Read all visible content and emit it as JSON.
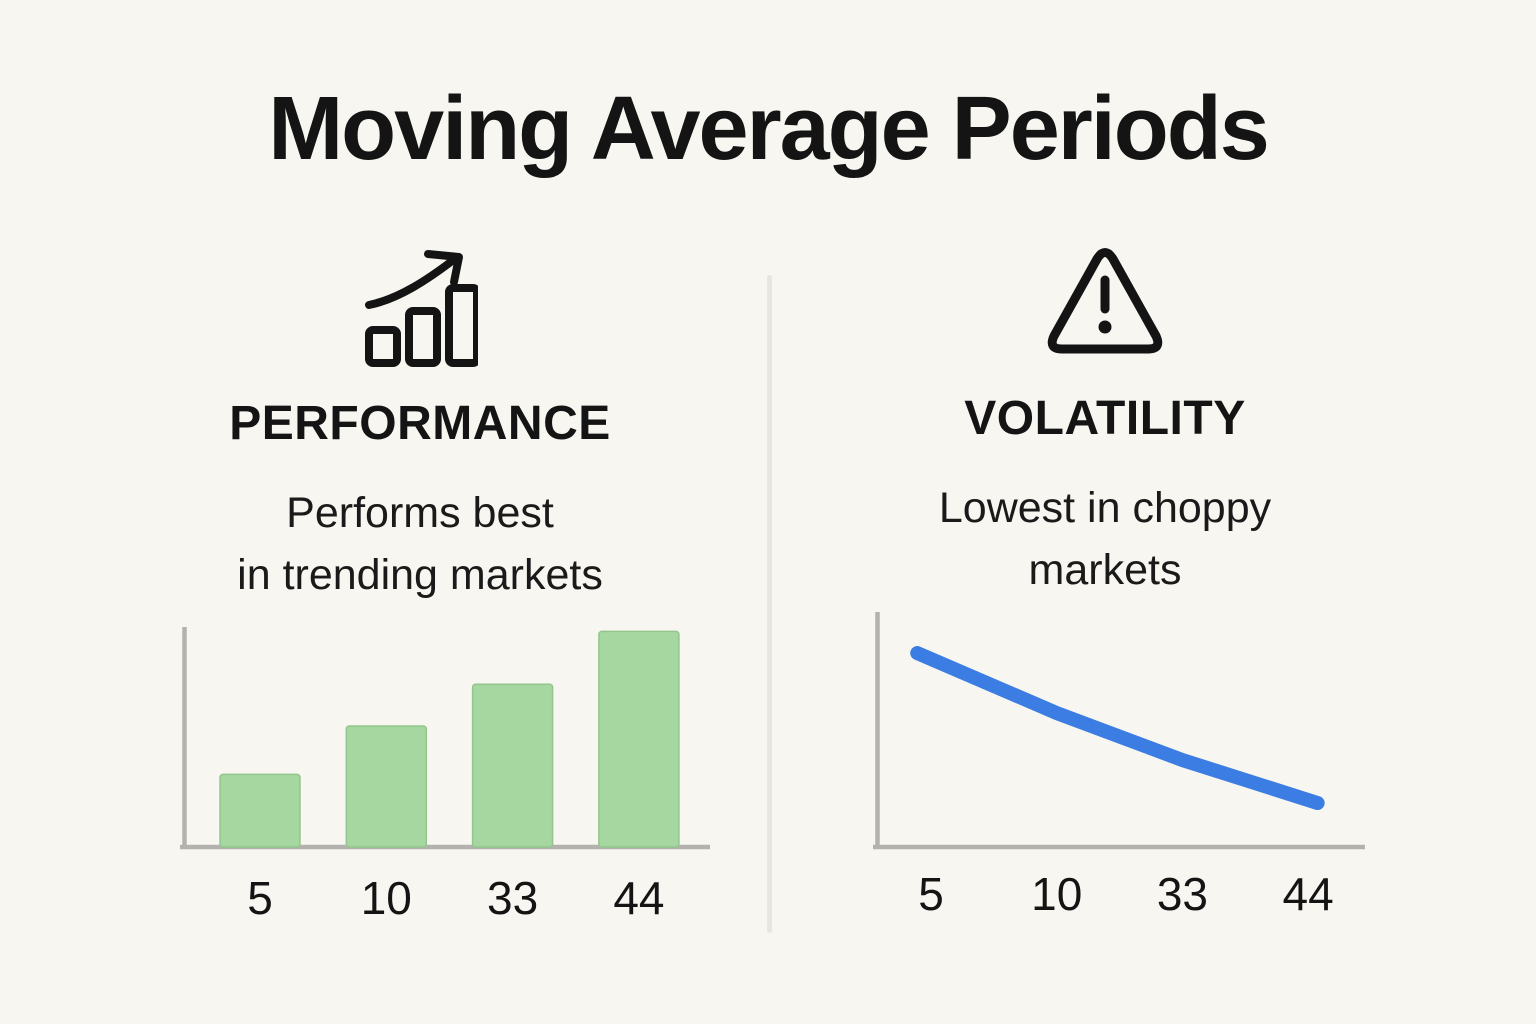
{
  "title": "Moving Average Periods",
  "panels": [
    {
      "id": "performance",
      "icon": "bar-chart-rising-icon",
      "heading": "PERFORMANCE",
      "subtitle_line1": "Performs best",
      "subtitle_line2": "in trending markets"
    },
    {
      "id": "volatility",
      "icon": "warning-triangle-icon",
      "heading": "VOLATILITY",
      "subtitle_line1": "Lowest in choppy",
      "subtitle_line2": "markets"
    }
  ],
  "chart_data": [
    {
      "type": "bar",
      "categories": [
        "5",
        "10",
        "33",
        "44"
      ],
      "values": [
        33,
        55,
        74,
        98
      ],
      "xlabel": "",
      "ylabel": "",
      "ylim": [
        0,
        100
      ],
      "grid": false,
      "legend": false,
      "bar_color": "#A6D7A0",
      "bar_edge_color": "#92C68C"
    },
    {
      "type": "line",
      "categories": [
        "5",
        "10",
        "33",
        "44"
      ],
      "values": [
        80,
        57,
        37,
        20
      ],
      "xlabel": "",
      "ylabel": "",
      "ylim": [
        0,
        100
      ],
      "grid": false,
      "legend": false,
      "line_color": "#3B7DE2"
    }
  ],
  "colors": {
    "background": "#F8F6F0",
    "text": "#141414",
    "axis": "#B4B2AE",
    "divider": "#E8E6E1",
    "bar_green": "#A6D7A0",
    "line_blue": "#3B7DE2"
  }
}
